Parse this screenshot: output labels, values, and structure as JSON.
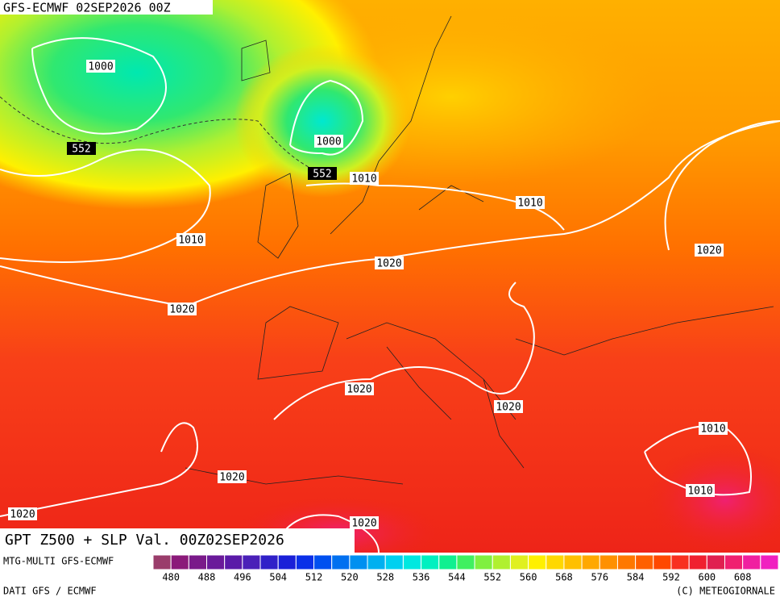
{
  "header": {
    "title": "GFS-ECMWF 02SEP2026 00Z"
  },
  "map": {
    "contour_labels": [
      "1000",
      "552",
      "1000",
      "552",
      "1010",
      "1010",
      "1010",
      "1020",
      "1020",
      "1020",
      "1020",
      "1020",
      "1010",
      "1010",
      "1020",
      "1020",
      "1020"
    ]
  },
  "caption": "GPT Z500 + SLP Val. 00Z02SEP2026",
  "footer": {
    "model": "MTG-MULTI GFS-ECMWF",
    "source": "DATI GFS / ECMWF",
    "credit": "(C) METEOGIORNALE"
  },
  "colorbar": {
    "colors": [
      "#9a3d6b",
      "#8b1a7a",
      "#7a1a8a",
      "#6a1a9a",
      "#5a1aa8",
      "#4a20b8",
      "#3020c8",
      "#1a20d8",
      "#0a30e8",
      "#0050f0",
      "#0070f0",
      "#0090f0",
      "#00b0f0",
      "#00d0f0",
      "#00e8e0",
      "#00f0c0",
      "#10f090",
      "#40f060",
      "#80f040",
      "#b0f030",
      "#e0f020",
      "#fff000",
      "#ffd800",
      "#ffc000",
      "#ffa800",
      "#ff9000",
      "#ff7800",
      "#ff6000",
      "#ff4800",
      "#f83020",
      "#f02030",
      "#e02050",
      "#f02070",
      "#f020a0",
      "#f020c0"
    ],
    "ticks": [
      480,
      488,
      496,
      504,
      512,
      520,
      528,
      536,
      544,
      552,
      560,
      568,
      576,
      584,
      592,
      600,
      608
    ]
  }
}
